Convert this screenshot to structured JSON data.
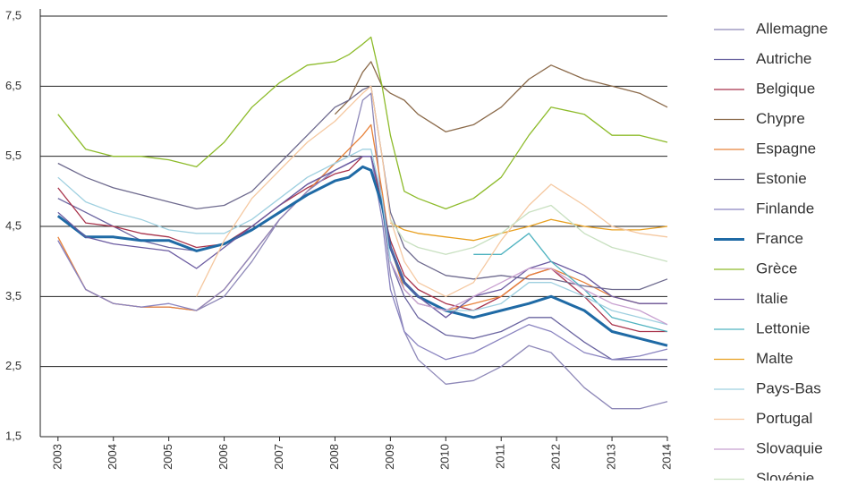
{
  "chart_data": {
    "type": "line",
    "x": [
      2003,
      2003.5,
      2004,
      2004.5,
      2005,
      2005.5,
      2006,
      2006.5,
      2007,
      2007.5,
      2008,
      2008.25,
      2008.5,
      2008.65,
      2008.85,
      2009,
      2009.25,
      2009.5,
      2010,
      2010.5,
      2011,
      2011.5,
      2011.9,
      2012.5,
      2013,
      2013.5,
      2014
    ],
    "xlim": [
      2002.68,
      2014
    ],
    "xticks": [
      2003,
      2004,
      2005,
      2006,
      2007,
      2008,
      2009,
      2010,
      2011,
      2012,
      2013,
      2014
    ],
    "ylim": [
      1.5,
      7.5
    ],
    "yticks": [
      {
        "value": 1.5,
        "label": "1,5"
      },
      {
        "value": 2.5,
        "label": "2,5"
      },
      {
        "value": 3.5,
        "label": "3,5"
      },
      {
        "value": 4.5,
        "label": "4,5"
      },
      {
        "value": 5.5,
        "label": "5,5"
      },
      {
        "value": 6.5,
        "label": "6,5"
      },
      {
        "value": 7.5,
        "label": "7,5"
      }
    ],
    "grid": true,
    "legend": "right",
    "series": [
      {
        "name": "Allemagne",
        "color": "#8e88b8",
        "values": [
          4.3,
          3.6,
          3.4,
          3.35,
          3.35,
          3.3,
          3.5,
          4.0,
          4.6,
          5.0,
          5.4,
          5.5,
          6.3,
          6.4,
          4.8,
          3.8,
          3.0,
          2.6,
          2.25,
          2.3,
          2.5,
          2.8,
          2.7,
          2.2,
          1.9,
          1.9,
          2.0
        ]
      },
      {
        "name": "Autriche",
        "color": "#6a64a0",
        "values": [
          4.9,
          4.7,
          4.5,
          4.3,
          4.2,
          4.15,
          4.25,
          4.5,
          4.8,
          5.1,
          5.3,
          5.4,
          5.5,
          5.5,
          4.8,
          4.0,
          3.5,
          3.2,
          2.95,
          2.9,
          3.0,
          3.2,
          3.2,
          2.85,
          2.6,
          2.6,
          2.6
        ]
      },
      {
        "name": "Belgique",
        "color": "#a8324a",
        "values": [
          5.05,
          4.55,
          4.5,
          4.4,
          4.35,
          4.2,
          4.25,
          4.5,
          4.8,
          5.05,
          5.25,
          5.3,
          5.5,
          5.5,
          4.8,
          4.3,
          3.8,
          3.6,
          3.4,
          3.3,
          3.5,
          3.8,
          3.9,
          3.5,
          3.1,
          3.0,
          3.0
        ]
      },
      {
        "name": "Chypre",
        "color": "#8b6a4a",
        "values": [
          null,
          null,
          null,
          null,
          null,
          null,
          null,
          null,
          null,
          null,
          6.1,
          6.3,
          6.7,
          6.85,
          6.5,
          6.4,
          6.3,
          6.1,
          5.85,
          5.95,
          6.2,
          6.6,
          6.8,
          6.6,
          6.5,
          6.4,
          6.2
        ]
      },
      {
        "name": "Espagne",
        "color": "#e8823a",
        "values": [
          4.35,
          3.6,
          3.4,
          3.35,
          3.35,
          3.3,
          3.6,
          4.1,
          4.6,
          5.0,
          5.4,
          5.6,
          5.8,
          5.95,
          5.0,
          4.2,
          3.6,
          3.4,
          3.3,
          3.4,
          3.5,
          3.8,
          3.9,
          3.7,
          3.5,
          3.4,
          3.4
        ]
      },
      {
        "name": "Estonie",
        "color": "#6e6a8e",
        "values": [
          5.4,
          5.2,
          5.05,
          4.95,
          4.85,
          4.75,
          4.8,
          5.0,
          5.4,
          5.8,
          6.2,
          6.3,
          6.45,
          6.5,
          5.5,
          4.7,
          4.2,
          4.0,
          3.8,
          3.75,
          3.8,
          3.75,
          3.75,
          3.65,
          3.6,
          3.6,
          3.75
        ]
      },
      {
        "name": "Finlande",
        "color": "#8a84c0",
        "values": [
          4.3,
          3.6,
          3.4,
          3.35,
          3.4,
          3.3,
          3.6,
          4.1,
          4.6,
          5.0,
          5.3,
          5.4,
          5.5,
          5.5,
          4.6,
          3.6,
          3.0,
          2.8,
          2.6,
          2.7,
          2.9,
          3.1,
          3.0,
          2.7,
          2.6,
          2.65,
          2.75
        ]
      },
      {
        "name": "France",
        "color": "#1f6aa5",
        "values": [
          4.65,
          4.35,
          4.35,
          4.3,
          4.3,
          4.15,
          4.25,
          4.45,
          4.7,
          4.95,
          5.15,
          5.2,
          5.35,
          5.3,
          4.8,
          4.2,
          3.7,
          3.5,
          3.3,
          3.2,
          3.3,
          3.4,
          3.5,
          3.3,
          3.0,
          2.9,
          2.8
        ]
      },
      {
        "name": "Grèce",
        "color": "#8dbb2a",
        "values": [
          6.1,
          5.6,
          5.5,
          5.5,
          5.45,
          5.35,
          5.7,
          6.2,
          6.55,
          6.8,
          6.85,
          6.95,
          7.1,
          7.2,
          6.5,
          5.8,
          5.0,
          4.9,
          4.75,
          4.9,
          5.2,
          5.8,
          6.2,
          6.1,
          5.8,
          5.8,
          5.7
        ]
      },
      {
        "name": "Italie",
        "color": "#6a5aa0",
        "values": [
          4.7,
          4.35,
          4.25,
          4.2,
          4.15,
          3.9,
          4.2,
          4.5,
          4.8,
          5.1,
          5.3,
          5.4,
          5.5,
          5.5,
          4.9,
          4.2,
          3.7,
          3.5,
          3.2,
          3.5,
          3.6,
          3.9,
          4.0,
          3.8,
          3.5,
          3.4,
          3.4
        ]
      },
      {
        "name": "Lettonie",
        "color": "#4fb3c0",
        "values": [
          null,
          null,
          null,
          null,
          null,
          null,
          null,
          null,
          null,
          null,
          null,
          null,
          null,
          null,
          null,
          null,
          null,
          null,
          null,
          4.1,
          4.1,
          4.4,
          4.0,
          3.6,
          3.2,
          3.1,
          3.0
        ]
      },
      {
        "name": "Malte",
        "color": "#e8a020",
        "values": [
          null,
          null,
          null,
          null,
          null,
          null,
          null,
          null,
          null,
          null,
          null,
          null,
          null,
          null,
          null,
          4.55,
          4.45,
          4.4,
          4.35,
          4.3,
          4.4,
          4.5,
          4.6,
          4.5,
          4.45,
          4.45,
          4.5
        ]
      },
      {
        "name": "Pays-Bas",
        "color": "#9fd0e0",
        "values": [
          5.2,
          4.85,
          4.7,
          4.6,
          4.45,
          4.4,
          4.4,
          4.6,
          4.9,
          5.2,
          5.4,
          5.5,
          5.6,
          5.6,
          4.9,
          4.0,
          3.6,
          3.4,
          3.3,
          3.3,
          3.4,
          3.7,
          3.7,
          3.5,
          3.3,
          3.2,
          3.1
        ]
      },
      {
        "name": "Portugal",
        "color": "#f5c8a0",
        "values": [
          null,
          null,
          null,
          null,
          null,
          3.5,
          4.3,
          4.9,
          5.3,
          5.7,
          6.0,
          6.2,
          6.4,
          6.5,
          5.5,
          4.6,
          4.0,
          3.7,
          3.5,
          3.7,
          4.3,
          4.8,
          5.1,
          4.8,
          4.5,
          4.4,
          4.35
        ]
      },
      {
        "name": "Slovaquie",
        "color": "#c8a0d0",
        "values": [
          null,
          null,
          null,
          null,
          null,
          null,
          null,
          null,
          null,
          null,
          null,
          null,
          null,
          null,
          null,
          4.0,
          3.6,
          3.4,
          3.3,
          3.5,
          3.7,
          3.9,
          3.9,
          3.6,
          3.4,
          3.3,
          3.1
        ]
      },
      {
        "name": "Slovénie",
        "color": "#c8e0c0",
        "values": [
          null,
          null,
          null,
          null,
          null,
          null,
          null,
          null,
          null,
          null,
          null,
          null,
          null,
          null,
          null,
          4.6,
          4.3,
          4.2,
          4.1,
          4.2,
          4.4,
          4.7,
          4.8,
          4.4,
          4.2,
          4.1,
          4.0
        ]
      }
    ]
  }
}
